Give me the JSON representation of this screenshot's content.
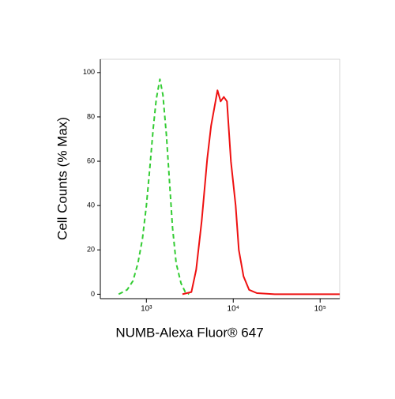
{
  "chart_data": {
    "type": "line",
    "x_label": "NUMB-Alexa Fluor® 647",
    "y_label": "Cell Counts (% Max)",
    "log_x": true,
    "xlim": [
      295,
      168000
    ],
    "xticks": [
      {
        "value": 1000,
        "label": "10³"
      },
      {
        "value": 10000,
        "label": "10⁴"
      },
      {
        "value": 100000,
        "label": "10⁵"
      }
    ],
    "ylim": [
      -2,
      106
    ],
    "yticks": [
      0,
      20,
      40,
      60,
      80,
      100
    ],
    "series": [
      {
        "color": "#33cc33",
        "dashed": true,
        "x": [
          480,
          600,
          700,
          800,
          900,
          1000,
          1100,
          1200,
          1300,
          1430,
          1550,
          1700,
          1850,
          2000,
          2200,
          2500,
          2800,
          3100
        ],
        "values": [
          0,
          2,
          6,
          14,
          25,
          40,
          58,
          75,
          88,
          97,
          90,
          72,
          50,
          30,
          14,
          5,
          1,
          0
        ]
      },
      {
        "color": "#ee1111",
        "dashed": false,
        "x": [
          2600,
          3300,
          3740,
          4330,
          5010,
          5560,
          6180,
          6580,
          7160,
          7780,
          8460,
          9400,
          10650,
          11580,
          13130,
          15200,
          18730,
          30000,
          100000,
          168000
        ],
        "values": [
          0,
          1,
          11,
          33,
          61,
          76,
          86,
          92,
          87,
          89,
          87,
          60,
          40,
          20,
          8,
          2,
          0.5,
          0,
          0,
          0
        ]
      }
    ]
  }
}
